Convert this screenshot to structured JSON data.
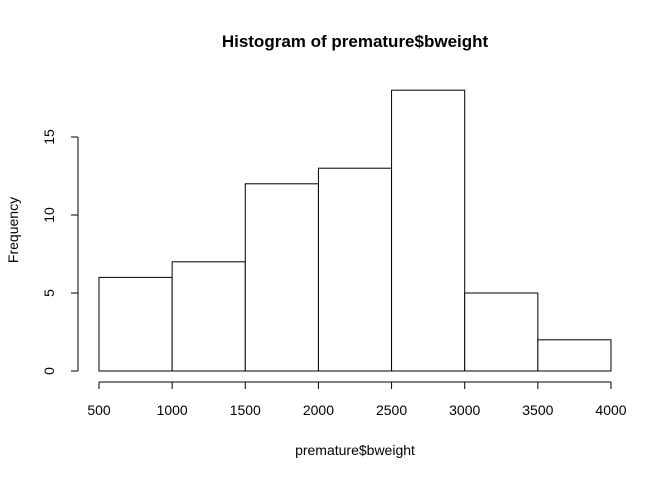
{
  "chart_data": {
    "type": "bar",
    "title": "Histogram of premature$bweight",
    "xlabel": "premature$bweight",
    "ylabel": "Frequency",
    "bins": [
      {
        "from": 500,
        "to": 1000,
        "count": 6
      },
      {
        "from": 1000,
        "to": 1500,
        "count": 7
      },
      {
        "from": 1500,
        "to": 2000,
        "count": 12
      },
      {
        "from": 2000,
        "to": 2500,
        "count": 13
      },
      {
        "from": 2500,
        "to": 3000,
        "count": 18
      },
      {
        "from": 3000,
        "to": 3500,
        "count": 5
      },
      {
        "from": 3500,
        "to": 4000,
        "count": 2
      }
    ],
    "x_ticks": [
      500,
      1000,
      1500,
      2000,
      2500,
      3000,
      3500,
      4000
    ],
    "y_ticks": [
      0,
      5,
      10,
      15
    ],
    "xlim": [
      500,
      4000
    ],
    "ylim": [
      0,
      18
    ],
    "grid": false,
    "colors": {
      "bar_fill": "#ffffff",
      "bar_stroke": "#000000"
    }
  }
}
